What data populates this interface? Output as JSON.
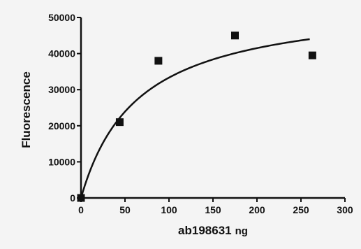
{
  "chart_data": {
    "type": "scatter",
    "title": "",
    "xlabel": "ab198631",
    "xlabel_unit": "ng",
    "ylabel": "Fluorescence",
    "xlim": [
      0,
      300
    ],
    "ylim": [
      0,
      50000
    ],
    "x_ticks": [
      "0",
      "50",
      "100",
      "150",
      "200",
      "250",
      "300"
    ],
    "y_ticks": [
      "0",
      "10000",
      "20000",
      "30000",
      "40000",
      "50000"
    ],
    "grid": false,
    "legend": "none",
    "marker": "square",
    "series": [
      {
        "points": [
          {
            "x": 0,
            "y": 0
          },
          {
            "x": 44,
            "y": 21000
          },
          {
            "x": 88,
            "y": 38000
          },
          {
            "x": 175,
            "y": 45000
          },
          {
            "x": 263,
            "y": 39500
          }
        ]
      }
    ],
    "fit_curve": {
      "model": "hyperbola",
      "bmax": 55000,
      "kd": 65,
      "x_range": [
        0,
        260
      ]
    },
    "colors": {
      "marks": "#111111",
      "background": "#f4f4f4"
    }
  }
}
